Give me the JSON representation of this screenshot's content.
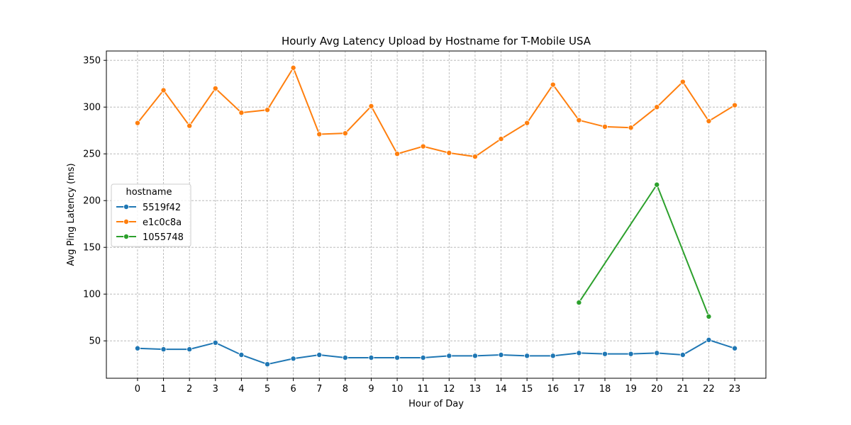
{
  "chart_data": {
    "type": "line",
    "title": "Hourly Avg Latency Upload by Hostname for T-Mobile USA",
    "xlabel": "Hour of Day",
    "ylabel": "Avg Ping Latency (ms)",
    "x": [
      0,
      1,
      2,
      3,
      4,
      5,
      6,
      7,
      8,
      9,
      10,
      11,
      12,
      13,
      14,
      15,
      16,
      17,
      18,
      19,
      20,
      21,
      22,
      23
    ],
    "xlim": [
      -1.2,
      24.2
    ],
    "ylim": [
      10,
      360
    ],
    "yticks": [
      50,
      100,
      150,
      200,
      250,
      300,
      350
    ],
    "grid": true,
    "legend": {
      "title": "hostname",
      "placement": "center-left"
    },
    "series": [
      {
        "name": "5519f42",
        "color": "#1f77b4",
        "x": [
          0,
          1,
          2,
          3,
          4,
          5,
          6,
          7,
          8,
          9,
          10,
          11,
          12,
          13,
          14,
          15,
          16,
          17,
          18,
          19,
          20,
          21,
          22,
          23
        ],
        "values": [
          42,
          41,
          41,
          48,
          35,
          25,
          31,
          35,
          32,
          32,
          32,
          32,
          34,
          34,
          35,
          34,
          34,
          37,
          36,
          36,
          37,
          35,
          51,
          42
        ]
      },
      {
        "name": "e1c0c8a",
        "color": "#ff7f0e",
        "x": [
          0,
          1,
          2,
          3,
          4,
          5,
          6,
          7,
          8,
          9,
          10,
          11,
          12,
          13,
          14,
          15,
          16,
          17,
          18,
          19,
          20,
          21,
          22,
          23
        ],
        "values": [
          283,
          318,
          280,
          320,
          294,
          297,
          342,
          271,
          272,
          301,
          250,
          258,
          251,
          247,
          266,
          283,
          324,
          286,
          279,
          278,
          300,
          327,
          285,
          302
        ]
      },
      {
        "name": "1055748",
        "color": "#2ca02c",
        "x": [
          17,
          20,
          22
        ],
        "values": [
          91,
          217,
          76
        ]
      }
    ]
  }
}
